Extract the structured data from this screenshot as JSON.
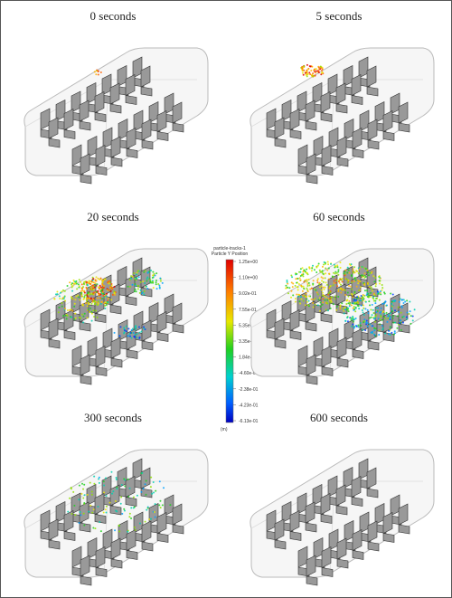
{
  "panels": [
    {
      "label": "0 seconds"
    },
    {
      "label": "5 seconds"
    },
    {
      "label": "20 seconds"
    },
    {
      "label": "60 seconds"
    },
    {
      "label": "300 seconds"
    },
    {
      "label": "600 seconds"
    }
  ],
  "legend": {
    "title_lines": [
      "particle-tracks-1",
      "Particle Y Position"
    ],
    "ticks": [
      "1.25e+00",
      "1.10e+00",
      "9.02e-01",
      "7.55e-01",
      "5.35e-01",
      "3.35e-01",
      "1.84e-01",
      "-4.60e-02",
      "-2.38e-01",
      "-4.23e-01",
      "-6.13e-01"
    ],
    "unit": "(m)"
  }
}
